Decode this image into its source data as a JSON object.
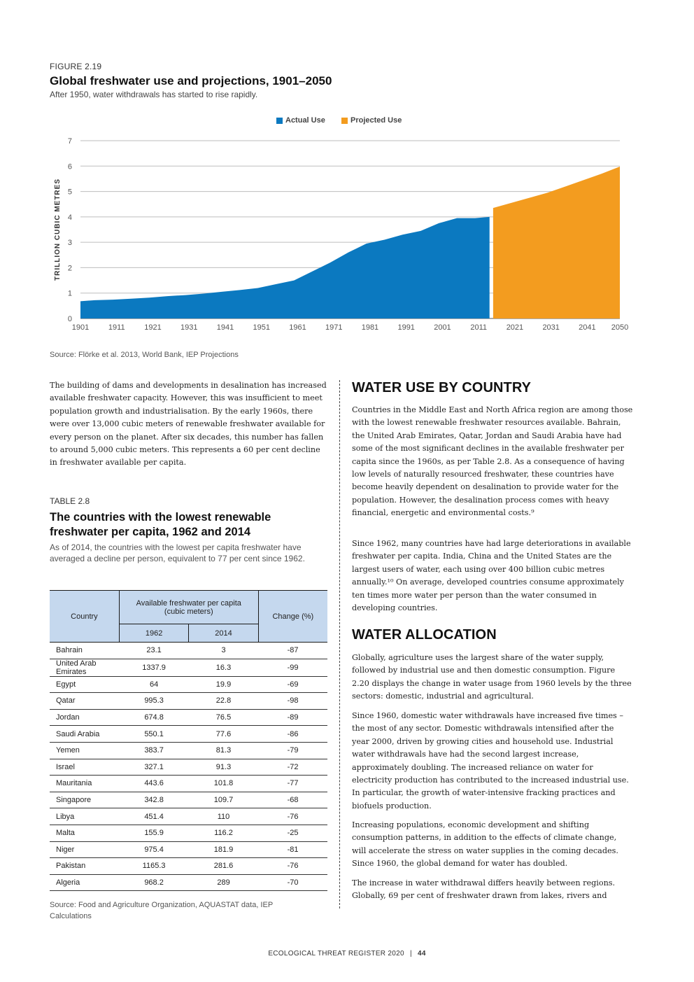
{
  "figure": {
    "label": "FIGURE 2.19",
    "title": "Global freshwater use and projections, 1901–2050",
    "subtitle": "After 1950, water withdrawals has started to rise rapidly.",
    "source": "Source: Flörke et al. 2013, World Bank, IEP Projections"
  },
  "chart_data": {
    "type": "area",
    "ylabel": "TRILLION CUBIC METRES",
    "ylim": [
      0,
      7
    ],
    "yticks": [
      "0",
      "1",
      "2",
      "3",
      "4",
      "5",
      "6",
      "7"
    ],
    "xticks": [
      "1901",
      "1911",
      "1921",
      "1931",
      "1941",
      "1951",
      "1961",
      "1971",
      "1981",
      "1991",
      "2001",
      "2011",
      "2021",
      "2031",
      "2041",
      "2050"
    ],
    "grid": true,
    "legend_position": "top-center",
    "series": [
      {
        "name": "Actual Use",
        "color": "#0b79c0",
        "x": [
          1901,
          1905,
          1910,
          1915,
          1920,
          1925,
          1930,
          1935,
          1940,
          1945,
          1950,
          1955,
          1960,
          1965,
          1970,
          1975,
          1980,
          1985,
          1990,
          1995,
          2000,
          2005,
          2010,
          2014
        ],
        "y": [
          0.68,
          0.72,
          0.74,
          0.78,
          0.82,
          0.88,
          0.92,
          0.98,
          1.05,
          1.12,
          1.2,
          1.35,
          1.5,
          1.85,
          2.2,
          2.6,
          2.95,
          3.1,
          3.3,
          3.45,
          3.75,
          3.95,
          3.95,
          4.0
        ]
      },
      {
        "name": "Projected Use",
        "color": "#f39c1f",
        "x": [
          2015,
          2020,
          2025,
          2030,
          2035,
          2040,
          2045,
          2050
        ],
        "y": [
          4.35,
          4.55,
          4.75,
          4.95,
          5.2,
          5.45,
          5.7,
          5.98
        ]
      }
    ]
  },
  "left_para": "The building of dams and developments in desalination has increased available freshwater capacity. However, this was insufficient to meet population growth and industrialisation. By the early 1960s, there were over 13,000 cubic meters of renewable freshwater available for every person on the planet. After six decades, this number has fallen to around 5,000 cubic meters. This represents a 60 per cent decline in freshwater available per capita.",
  "table": {
    "label": "TABLE 2.8",
    "title": "The countries with the lowest renewable freshwater per capita, 1962 and 2014",
    "subtitle": "As of 2014, the countries with the lowest per capita freshwater have averaged a decline per person, equivalent to 77 per cent since 1962.",
    "col_country": "Country",
    "col_avail": "Available freshwater per capita (cubic meters)",
    "col_1962": "1962",
    "col_2014": "2014",
    "col_change": "Change (%)",
    "rows": [
      [
        "Bahrain",
        "23.1",
        "3",
        "-87"
      ],
      [
        "United Arab Emirates",
        "1337.9",
        "16.3",
        "-99"
      ],
      [
        "Egypt",
        "64",
        "19.9",
        "-69"
      ],
      [
        "Qatar",
        "995.3",
        "22.8",
        "-98"
      ],
      [
        "Jordan",
        "674.8",
        "76.5",
        "-89"
      ],
      [
        "Saudi Arabia",
        "550.1",
        "77.6",
        "-86"
      ],
      [
        "Yemen",
        "383.7",
        "81.3",
        "-79"
      ],
      [
        "Israel",
        "327.1",
        "91.3",
        "-72"
      ],
      [
        "Mauritania",
        "443.6",
        "101.8",
        "-77"
      ],
      [
        "Singapore",
        "342.8",
        "109.7",
        "-68"
      ],
      [
        "Libya",
        "451.4",
        "110",
        "-76"
      ],
      [
        "Malta",
        "155.9",
        "116.2",
        "-25"
      ],
      [
        "Niger",
        "975.4",
        "181.9",
        "-81"
      ],
      [
        "Pakistan",
        "1165.3",
        "281.6",
        "-76"
      ],
      [
        "Algeria",
        "968.2",
        "289",
        "-70"
      ]
    ],
    "source": "Source: Food and Agriculture Organization, AQUASTAT data, IEP Calculations"
  },
  "right": {
    "h1": "WATER USE BY COUNTRY",
    "p1": "Countries in the Middle East and North Africa region are among those with the lowest renewable freshwater resources available. Bahrain, the United Arab Emirates, Qatar, Jordan and Saudi Arabia have had some of the most significant declines in the available freshwater per capita since the 1960s, as per Table 2.8. As a consequence of having low levels of naturally resourced freshwater, these countries have become heavily dependent on desalination to provide water for the population. However, the desalination process comes with heavy financial, energetic and environmental costs.⁹",
    "p2": "Since 1962, many countries have had large deteriorations in available freshwater per capita. India, China and the United States are the largest users of water, each using over 400 billion cubic metres annually.¹⁰ On average, developed countries consume approximately ten times more water per person than the water consumed in developing countries.",
    "h2": "WATER ALLOCATION",
    "p3": "Globally, agriculture uses the largest share of the water supply, followed by industrial use and then domestic consumption. Figure 2.20 displays the change in water usage from 1960 levels by the three sectors: domestic, industrial and agricultural.",
    "p4": "Since 1960, domestic water withdrawals have increased five times – the most of any sector. Domestic withdrawals intensified after the year 2000, driven by growing cities and household use. Industrial water withdrawals have had the second largest increase, approximately doubling. The increased reliance on water for electricity production has contributed to the increased industrial use. In particular, the growth of water-intensive fracking practices and biofuels production.",
    "p5": "Increasing populations, economic development and shifting consumption patterns, in addition to the effects of climate change, will accelerate the stress on water supplies in the coming decades. Since 1960, the global demand for water has doubled.",
    "p6": "The increase in water withdrawal differs heavily between regions. Globally, 69 per cent of freshwater drawn from lakes, rivers and"
  },
  "footer": {
    "text": "ECOLOGICAL THREAT REGISTER 2020",
    "sep": "|",
    "page": "44"
  }
}
